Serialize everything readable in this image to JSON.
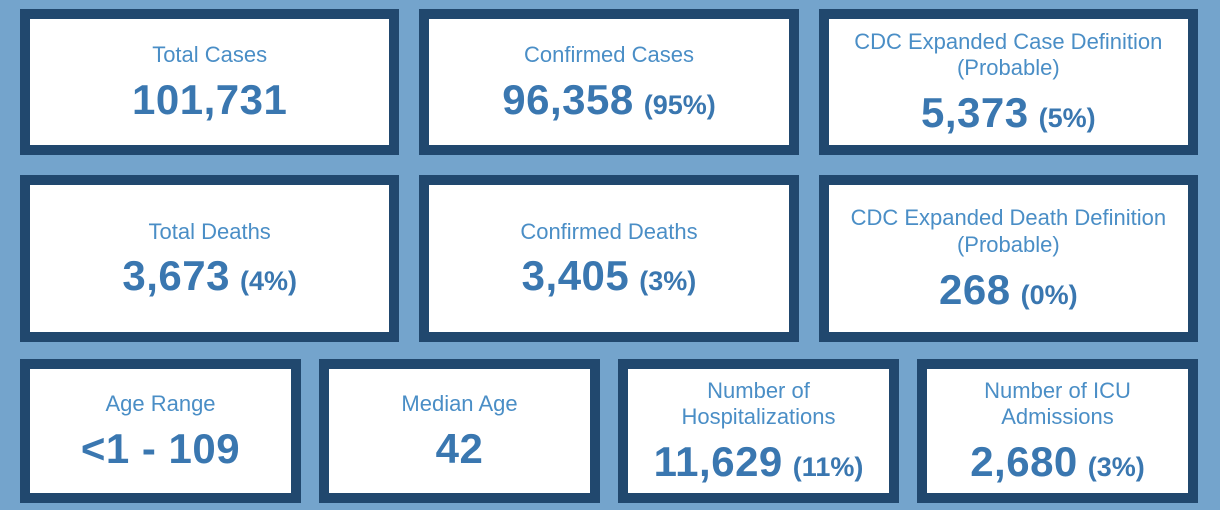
{
  "theme": {
    "page_bg": "#74A4CC",
    "card_bg": "#FFFFFF",
    "card_border": "#21486E",
    "label_color": "#4A8EC6",
    "value_color": "#3A77B0"
  },
  "rows": [
    {
      "cards": [
        {
          "label": "Total Cases",
          "value": "101,731",
          "percent": ""
        },
        {
          "label": "Confirmed Cases",
          "value": "96,358",
          "percent": "(95%)"
        },
        {
          "label": "CDC Expanded Case Definition (Probable)",
          "value": "5,373",
          "percent": "(5%)"
        }
      ]
    },
    {
      "cards": [
        {
          "label": "Total Deaths",
          "value": "3,673",
          "percent": "(4%)"
        },
        {
          "label": "Confirmed Deaths",
          "value": "3,405",
          "percent": "(3%)"
        },
        {
          "label": "CDC Expanded Death Definition (Probable)",
          "value": "268",
          "percent": "(0%)"
        }
      ]
    },
    {
      "cards": [
        {
          "label": "Age Range",
          "value": "<1 - 109",
          "percent": ""
        },
        {
          "label": "Median Age",
          "value": "42",
          "percent": ""
        },
        {
          "label": "Number of Hospitalizations",
          "value": "11,629",
          "percent": "(11%)"
        },
        {
          "label": "Number of ICU Admissions",
          "value": "2,680",
          "percent": "(3%)"
        }
      ]
    }
  ]
}
